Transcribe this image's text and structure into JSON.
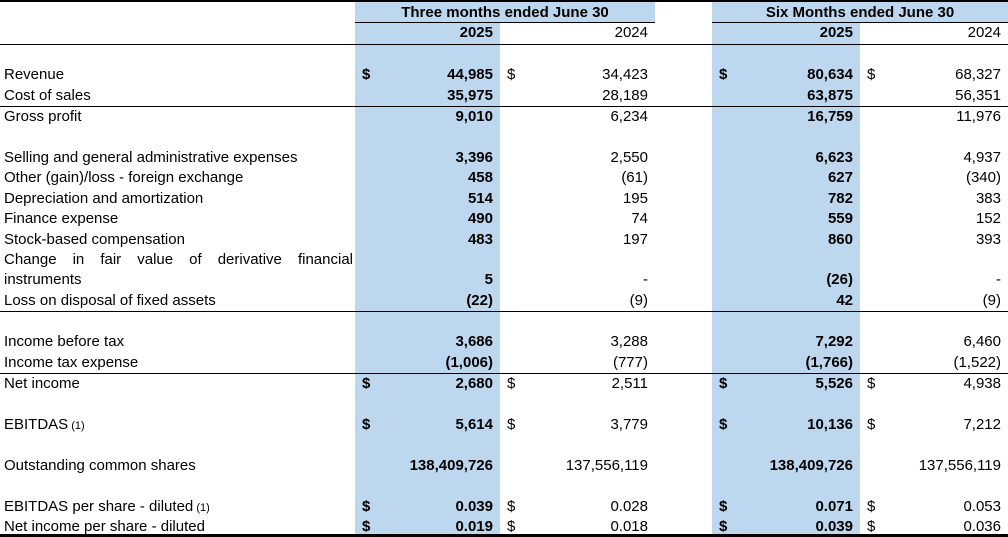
{
  "colors": {
    "highlight": "#BDD7EE",
    "border": "#000000"
  },
  "table": {
    "groups": [
      {
        "label": "Three months ended June 30",
        "years": [
          {
            "label": "2025"
          },
          {
            "label": "2024"
          }
        ]
      },
      {
        "label": "Six Months ended June 30",
        "years": [
          {
            "label": "2025"
          },
          {
            "label": "2024"
          }
        ]
      }
    ],
    "rows": [
      {
        "type": "spacer"
      },
      {
        "type": "data",
        "label": "Revenue",
        "dollar": true,
        "values": [
          "44,985",
          "34,423",
          "80,634",
          "68,327"
        ]
      },
      {
        "type": "data",
        "label": "Cost of sales",
        "values": [
          "35,975",
          "28,189",
          "63,875",
          "56,351"
        ]
      },
      {
        "type": "data",
        "label": "Gross profit",
        "border_top": true,
        "values": [
          "9,010",
          "6,234",
          "16,759",
          "11,976"
        ]
      },
      {
        "type": "spacer"
      },
      {
        "type": "data",
        "label": "Selling and general administrative expenses",
        "values": [
          "3,396",
          "2,550",
          "6,623",
          "4,937"
        ]
      },
      {
        "type": "data",
        "label": "Other (gain)/loss - foreign exchange",
        "values": [
          "458",
          "(61)",
          "627",
          "(340)"
        ]
      },
      {
        "type": "data",
        "label": "Depreciation and amortization",
        "values": [
          "514",
          "195",
          "782",
          "383"
        ]
      },
      {
        "type": "data",
        "label": "Finance expense",
        "values": [
          "490",
          "74",
          "559",
          "152"
        ]
      },
      {
        "type": "data",
        "label": "Stock-based compensation",
        "values": [
          "483",
          "197",
          "860",
          "393"
        ]
      },
      {
        "type": "data",
        "label": "Change in fair value of derivative financial instruments",
        "wrap": true,
        "values": [
          "5",
          "-",
          "(26)",
          "-"
        ]
      },
      {
        "type": "data",
        "label": "Loss on disposal of fixed assets",
        "values": [
          "(22)",
          "(9)",
          "42",
          "(9)"
        ]
      },
      {
        "type": "spacer",
        "border_top": true
      },
      {
        "type": "data",
        "label": "Income before tax",
        "values": [
          "3,686",
          "3,288",
          "7,292",
          "6,460"
        ]
      },
      {
        "type": "data",
        "label": "Income tax expense",
        "values": [
          "(1,006)",
          "(777)",
          "(1,766)",
          "(1,522)"
        ]
      },
      {
        "type": "data",
        "label": "Net income",
        "dollar": true,
        "border_top": true,
        "values": [
          "2,680",
          "2,511",
          "5,526",
          "4,938"
        ]
      },
      {
        "type": "spacer"
      },
      {
        "type": "data",
        "label": "EBITDAS",
        "label_note": "(1)",
        "dollar": true,
        "values": [
          "5,614",
          "3,779",
          "10,136",
          "7,212"
        ]
      },
      {
        "type": "spacer"
      },
      {
        "type": "data",
        "label": "Outstanding common shares",
        "values": [
          "138,409,726",
          "137,556,119",
          "138,409,726",
          "137,556,119"
        ]
      },
      {
        "type": "spacer"
      },
      {
        "type": "data",
        "label": "EBITDAS per share - diluted",
        "label_note": "(1)",
        "dollar": true,
        "values": [
          "0.039",
          "0.028",
          "0.071",
          "0.053"
        ]
      },
      {
        "type": "data",
        "label": "Net income per share - diluted",
        "dollar": true,
        "values": [
          "0.019",
          "0.018",
          "0.039",
          "0.036"
        ]
      }
    ]
  }
}
